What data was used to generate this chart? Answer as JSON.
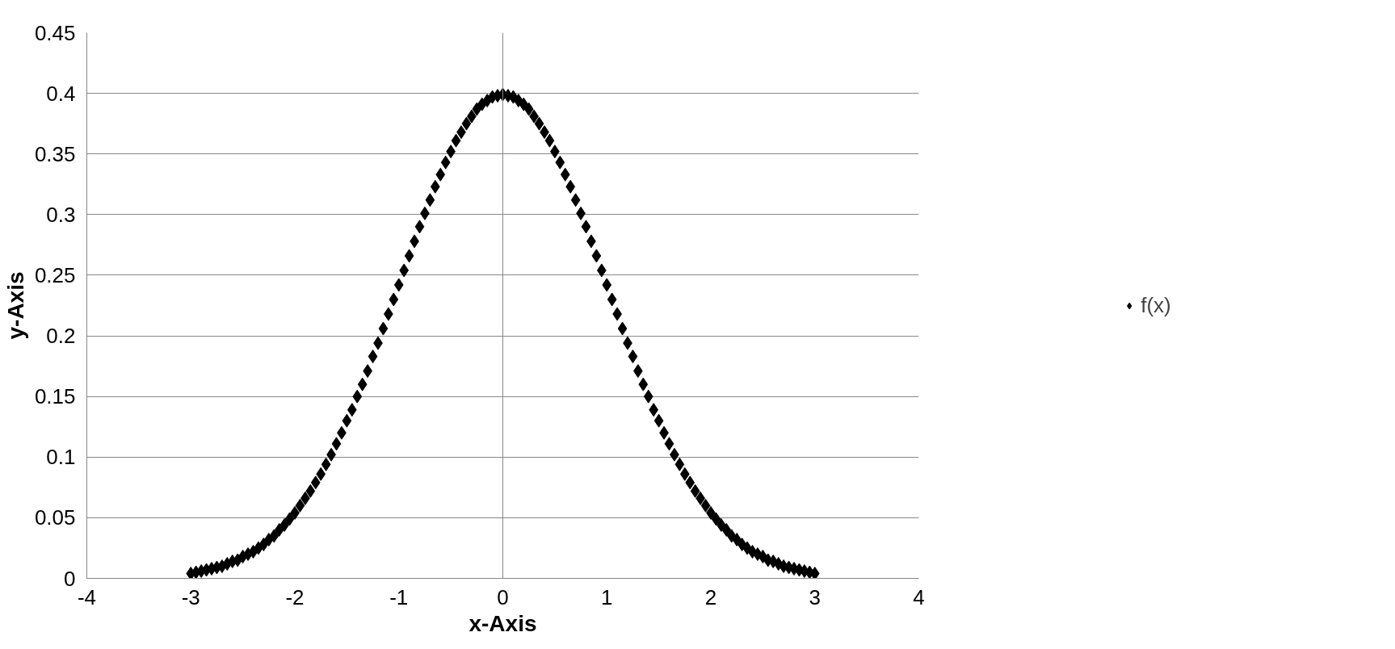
{
  "chart_data": {
    "type": "scatter",
    "xlabel": "x-Axis",
    "ylabel": "y-Axis",
    "xlim": [
      -4,
      4
    ],
    "xticks": [
      -4,
      -3,
      -2,
      -1,
      0,
      1,
      2,
      3,
      4
    ],
    "ylim": [
      0,
      0.45
    ],
    "yticks": [
      0,
      0.05,
      0.1,
      0.15,
      0.2,
      0.25,
      0.3,
      0.35,
      0.4,
      0.45
    ],
    "grid": "y",
    "ref_lines": [
      {
        "axis": "x",
        "value": 0,
        "color": "#888888"
      }
    ],
    "legend": "right",
    "marker": "diamond",
    "series": [
      {
        "name": "f(x)",
        "color": "#000000",
        "x": [
          -3.0,
          -2.95,
          -2.9,
          -2.85,
          -2.8,
          -2.75,
          -2.7,
          -2.65,
          -2.6,
          -2.55,
          -2.5,
          -2.45,
          -2.4,
          -2.35,
          -2.3,
          -2.25,
          -2.2,
          -2.15,
          -2.1,
          -2.05,
          -2.0,
          -1.95,
          -1.9,
          -1.85,
          -1.8,
          -1.75,
          -1.7,
          -1.65,
          -1.6,
          -1.55,
          -1.5,
          -1.45,
          -1.4,
          -1.35,
          -1.3,
          -1.25,
          -1.2,
          -1.15,
          -1.1,
          -1.05,
          -1.0,
          -0.95,
          -0.9,
          -0.85,
          -0.8,
          -0.75,
          -0.7,
          -0.65,
          -0.6,
          -0.55,
          -0.5,
          -0.45,
          -0.4,
          -0.35,
          -0.3,
          -0.25,
          -0.2,
          -0.15,
          -0.1,
          -0.05,
          0.0,
          0.05,
          0.1,
          0.15,
          0.2,
          0.25,
          0.3,
          0.35,
          0.4,
          0.45,
          0.5,
          0.55,
          0.6,
          0.65,
          0.7,
          0.75,
          0.8,
          0.85,
          0.9,
          0.95,
          1.0,
          1.05,
          1.1,
          1.15,
          1.2,
          1.25,
          1.3,
          1.35,
          1.4,
          1.45,
          1.5,
          1.55,
          1.6,
          1.65,
          1.7,
          1.75,
          1.8,
          1.85,
          1.9,
          1.95,
          2.0,
          2.05,
          2.1,
          2.15,
          2.2,
          2.25,
          2.3,
          2.35,
          2.4,
          2.45,
          2.5,
          2.55,
          2.6,
          2.65,
          2.7,
          2.75,
          2.8,
          2.85,
          2.9,
          2.95,
          3.0
        ],
        "values": [
          0.004,
          0.005,
          0.006,
          0.007,
          0.008,
          0.009,
          0.01,
          0.012,
          0.014,
          0.015,
          0.018,
          0.02,
          0.022,
          0.025,
          0.028,
          0.032,
          0.035,
          0.04,
          0.044,
          0.049,
          0.054,
          0.06,
          0.066,
          0.072,
          0.079,
          0.086,
          0.094,
          0.102,
          0.111,
          0.12,
          0.13,
          0.139,
          0.15,
          0.16,
          0.171,
          0.183,
          0.194,
          0.206,
          0.218,
          0.23,
          0.242,
          0.254,
          0.266,
          0.278,
          0.29,
          0.301,
          0.312,
          0.323,
          0.333,
          0.343,
          0.352,
          0.361,
          0.368,
          0.375,
          0.381,
          0.387,
          0.391,
          0.394,
          0.397,
          0.398,
          0.399,
          0.398,
          0.397,
          0.394,
          0.391,
          0.387,
          0.381,
          0.375,
          0.368,
          0.361,
          0.352,
          0.343,
          0.333,
          0.323,
          0.312,
          0.301,
          0.29,
          0.278,
          0.266,
          0.254,
          0.242,
          0.23,
          0.218,
          0.206,
          0.194,
          0.183,
          0.171,
          0.16,
          0.15,
          0.139,
          0.13,
          0.12,
          0.111,
          0.102,
          0.094,
          0.086,
          0.079,
          0.072,
          0.066,
          0.06,
          0.054,
          0.049,
          0.044,
          0.04,
          0.035,
          0.032,
          0.028,
          0.025,
          0.022,
          0.02,
          0.018,
          0.015,
          0.014,
          0.012,
          0.01,
          0.009,
          0.008,
          0.007,
          0.006,
          0.005,
          0.004
        ]
      }
    ]
  }
}
